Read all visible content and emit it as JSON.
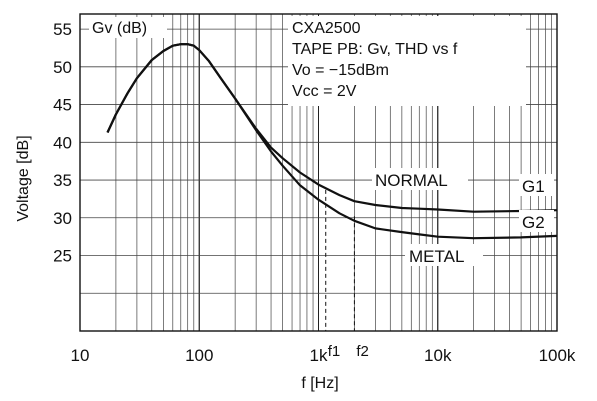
{
  "chart_data": {
    "type": "line",
    "xscale": "log",
    "xlim": [
      10,
      100000
    ],
    "ylim": [
      15,
      57
    ],
    "yticks": [
      25,
      30,
      35,
      40,
      45,
      50,
      55
    ],
    "xticks": [
      {
        "value": 10,
        "label": "10"
      },
      {
        "value": 100,
        "label": "100"
      },
      {
        "value": 1000,
        "label": "1k"
      },
      {
        "value": 10000,
        "label": "10k"
      },
      {
        "value": 100000,
        "label": "100k"
      }
    ],
    "xlabel": "f [Hz]",
    "ylabel": "Voltage [dB]",
    "grid": true,
    "series": [
      {
        "name": "NORMAL",
        "tag": "G1",
        "x": [
          17,
          20,
          25,
          30,
          40,
          50,
          60,
          70,
          80,
          90,
          100,
          120,
          150,
          200,
          300,
          400,
          500,
          700,
          1000,
          1500,
          2000,
          3000,
          5000,
          7000,
          10000,
          20000,
          50000,
          100000
        ],
        "y": [
          41.3,
          43.7,
          46.5,
          48.5,
          50.9,
          52.1,
          52.8,
          53.0,
          53.0,
          52.8,
          52.2,
          50.8,
          48.6,
          45.8,
          41.8,
          39.3,
          37.9,
          36.0,
          34.4,
          33.0,
          32.2,
          31.7,
          31.3,
          31.2,
          31.1,
          30.8,
          30.9,
          31.0
        ]
      },
      {
        "name": "METAL",
        "tag": "G2",
        "x": [
          17,
          20,
          25,
          30,
          40,
          50,
          60,
          70,
          80,
          90,
          100,
          120,
          150,
          200,
          300,
          400,
          500,
          700,
          1000,
          1500,
          2000,
          3000,
          5000,
          7000,
          10000,
          20000,
          50000,
          100000
        ],
        "y": [
          41.3,
          43.7,
          46.5,
          48.5,
          50.9,
          52.1,
          52.8,
          53.0,
          53.0,
          52.8,
          52.2,
          50.8,
          48.6,
          45.8,
          41.6,
          38.8,
          36.9,
          34.3,
          32.4,
          30.6,
          29.6,
          28.6,
          28.1,
          27.8,
          27.5,
          27.3,
          27.4,
          27.6
        ]
      }
    ],
    "markers": [
      {
        "label": "f1",
        "x": 1150,
        "y_to": 33.7
      },
      {
        "label": "f2",
        "x": 2000,
        "y_to": 30.2
      }
    ],
    "annotations": {
      "gv_label": "Gv (dB)",
      "info_lines": [
        "CXA2500",
        "TAPE PB: Gv, THD vs f",
        "Vo = −15dBm",
        "Vcc = 2V"
      ]
    }
  }
}
